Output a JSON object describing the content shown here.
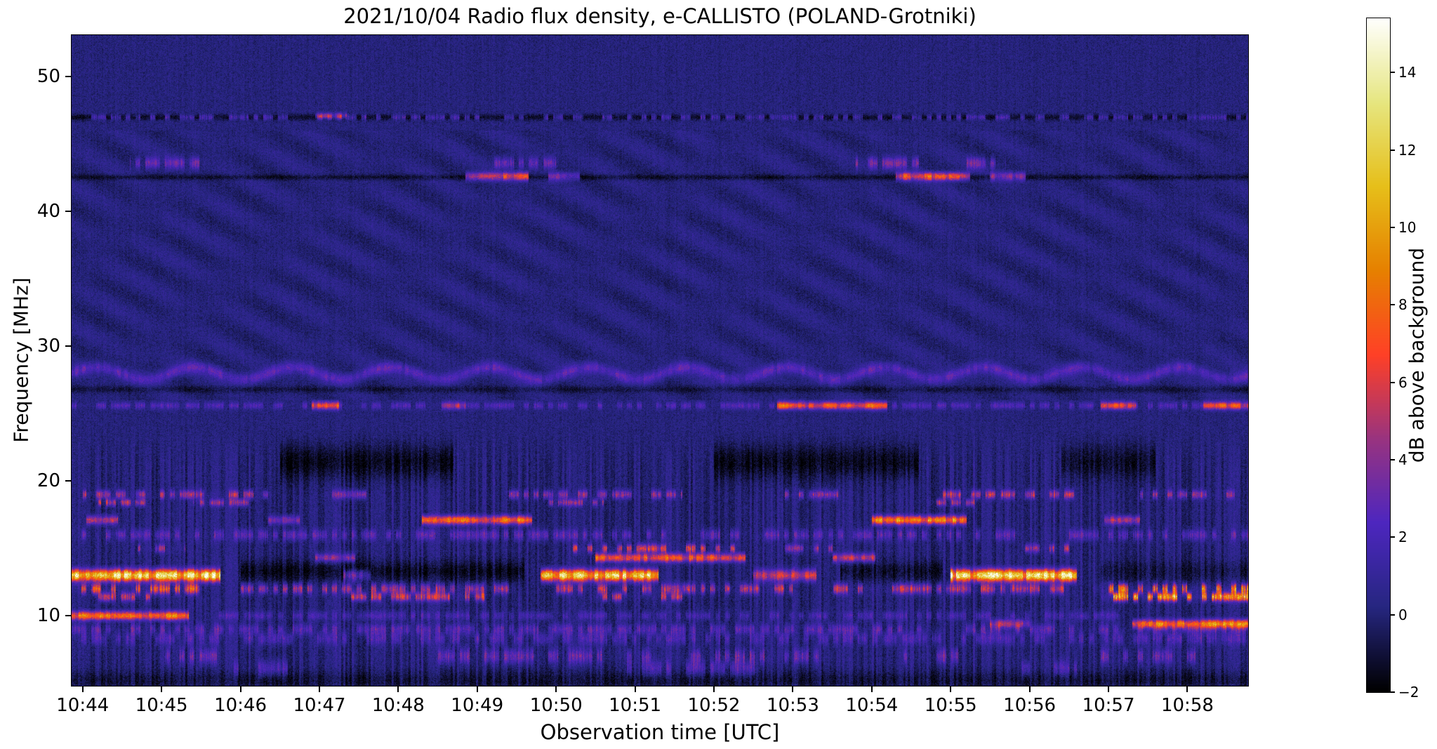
{
  "chart_data": {
    "type": "heatmap",
    "title": "2021/10/04  Radio flux density, e-CALLISTO (POLAND-Grotniki)",
    "xlabel": "Observation time [UTC]",
    "ylabel": "Frequency [MHz]",
    "colorbar_label": "dB above background",
    "x_ticks": [
      "10:44",
      "10:45",
      "10:46",
      "10:47",
      "10:48",
      "10:49",
      "10:50",
      "10:51",
      "10:52",
      "10:53",
      "10:54",
      "10:55",
      "10:56",
      "10:57",
      "10:58"
    ],
    "y_ticks": [
      {
        "v": 10,
        "label": "10"
      },
      {
        "v": 20,
        "label": "20"
      },
      {
        "v": 30,
        "label": "30"
      },
      {
        "v": 40,
        "label": "40"
      },
      {
        "v": 50,
        "label": "50"
      }
    ],
    "colorbar_ticks": [
      {
        "v": -2,
        "label": "−2"
      },
      {
        "v": 0,
        "label": "0"
      },
      {
        "v": 2,
        "label": "2"
      },
      {
        "v": 4,
        "label": "4"
      },
      {
        "v": 6,
        "label": "6"
      },
      {
        "v": 8,
        "label": "8"
      },
      {
        "v": 10,
        "label": "10"
      },
      {
        "v": 12,
        "label": "12"
      },
      {
        "v": 14,
        "label": "14"
      }
    ],
    "time_start_min": -0.14,
    "time_end_min": 14.77,
    "freq_min_mhz": 4.8,
    "freq_max_mhz": 53.1,
    "value_min_db": -2,
    "value_max_db": 15.4,
    "background_db_mean": 0.15,
    "background_db_noise": 1.0,
    "colormap": [
      [
        0.0,
        "#000000"
      ],
      [
        0.125,
        "#262680"
      ],
      [
        0.25,
        "#4d26bf"
      ],
      [
        0.375,
        "#99337f"
      ],
      [
        0.5,
        "#ff4026"
      ],
      [
        0.625,
        "#e68000"
      ],
      [
        0.75,
        "#e6bf1a"
      ],
      [
        0.875,
        "#e6e680"
      ],
      [
        1.0,
        "#ffffff"
      ]
    ],
    "bands": [
      {
        "f": 47.0,
        "w": 0.16,
        "mode": "dark",
        "segs": [
          [
            -0.2,
            14.8,
            -1.6
          ]
        ]
      },
      {
        "f": 47.0,
        "w": 0.14,
        "mode": "dash",
        "segs": [
          [
            0.0,
            14.8,
            3.2
          ]
        ]
      },
      {
        "f": 47.1,
        "w": 0.15,
        "mode": "line",
        "segs": [
          [
            2.95,
            3.35,
            4.5
          ]
        ]
      },
      {
        "f": 43.6,
        "w": 0.3,
        "mode": "dash",
        "segs": [
          [
            0.6,
            1.6,
            3.0
          ],
          [
            5.2,
            6.0,
            3.0
          ],
          [
            9.8,
            10.6,
            3.5
          ],
          [
            11.2,
            11.7,
            3.0
          ]
        ]
      },
      {
        "f": 42.55,
        "w": 0.14,
        "mode": "dark",
        "segs": [
          [
            -0.2,
            14.8,
            -1.3
          ]
        ]
      },
      {
        "f": 42.6,
        "w": 0.2,
        "mode": "line",
        "segs": [
          [
            4.85,
            5.65,
            7.5
          ],
          [
            5.9,
            6.3,
            4.5
          ],
          [
            10.3,
            11.25,
            8.5
          ],
          [
            11.5,
            11.95,
            5.0
          ]
        ]
      },
      {
        "f": 28.0,
        "w": 0.3,
        "mode": "line",
        "wamp": 0.45,
        "wper": 1.25,
        "segs": [
          [
            -0.2,
            14.8,
            2.6
          ]
        ]
      },
      {
        "f": 26.8,
        "w": 0.18,
        "mode": "dark",
        "segs": [
          [
            -0.2,
            14.8,
            -1.0
          ]
        ]
      },
      {
        "f": 25.6,
        "w": 0.18,
        "mode": "dash",
        "segs": [
          [
            -0.2,
            14.8,
            2.2
          ]
        ]
      },
      {
        "f": 25.6,
        "w": 0.2,
        "mode": "line",
        "segs": [
          [
            2.9,
            3.25,
            5.5
          ],
          [
            4.55,
            4.85,
            4.0
          ],
          [
            8.8,
            10.2,
            7.0
          ],
          [
            12.9,
            13.35,
            5.5
          ],
          [
            14.2,
            14.8,
            6.0
          ]
        ]
      },
      {
        "f": 21.4,
        "w": 0.9,
        "mode": "dark",
        "segs": [
          [
            2.5,
            4.7,
            -1.7
          ],
          [
            8.0,
            10.6,
            -1.7
          ],
          [
            12.4,
            13.6,
            -1.4
          ]
        ]
      },
      {
        "f": 19.0,
        "w": 0.22,
        "mode": "dash",
        "segs": [
          [
            0.0,
            2.4,
            4.5
          ],
          [
            3.0,
            3.6,
            3.5
          ],
          [
            5.4,
            7.6,
            4.0
          ],
          [
            8.9,
            9.6,
            4.0
          ],
          [
            10.9,
            12.6,
            5.0
          ],
          [
            13.4,
            14.6,
            4.0
          ]
        ]
      },
      {
        "f": 18.4,
        "w": 0.18,
        "mode": "dash",
        "segs": [
          [
            0.2,
            0.8,
            5.0
          ],
          [
            1.4,
            2.1,
            4.0
          ],
          [
            5.9,
            6.6,
            4.0
          ],
          [
            10.7,
            11.3,
            5.0
          ]
        ]
      },
      {
        "f": 17.1,
        "w": 0.22,
        "mode": "line",
        "segs": [
          [
            0.05,
            0.45,
            5.0
          ],
          [
            2.35,
            2.75,
            4.0
          ],
          [
            4.3,
            5.7,
            8.5
          ],
          [
            10.0,
            11.2,
            9.5
          ],
          [
            12.95,
            13.4,
            5.0
          ]
        ]
      },
      {
        "f": 16.0,
        "w": 0.28,
        "mode": "dash",
        "segs": [
          [
            -0.2,
            14.8,
            2.6
          ]
        ]
      },
      {
        "f": 15.0,
        "w": 0.22,
        "mode": "dash",
        "segs": [
          [
            0.7,
            1.3,
            4.5
          ],
          [
            6.2,
            8.3,
            6.0
          ],
          [
            8.9,
            9.5,
            4.0
          ],
          [
            11.9,
            12.5,
            4.5
          ]
        ]
      },
      {
        "f": 14.3,
        "w": 0.22,
        "mode": "line",
        "segs": [
          [
            2.95,
            3.45,
            4.0
          ],
          [
            6.5,
            8.4,
            7.5
          ],
          [
            9.5,
            10.05,
            5.5
          ]
        ]
      },
      {
        "f": 13.0,
        "w": 0.3,
        "mode": "line",
        "segs": [
          [
            -0.2,
            1.75,
            13.5
          ],
          [
            3.3,
            3.65,
            4.0
          ],
          [
            5.8,
            7.3,
            12.5
          ],
          [
            8.5,
            9.3,
            6.0
          ],
          [
            11.0,
            12.6,
            13.8
          ]
        ]
      },
      {
        "f": 13.3,
        "w": 0.55,
        "mode": "dark",
        "segs": [
          [
            2.0,
            5.6,
            -1.6
          ],
          [
            9.6,
            10.9,
            -1.4
          ],
          [
            12.9,
            14.8,
            -1.0
          ]
        ]
      },
      {
        "f": 12.0,
        "w": 0.26,
        "mode": "dash",
        "segs": [
          [
            -0.2,
            1.5,
            7.0
          ],
          [
            2.0,
            5.5,
            4.5
          ],
          [
            6.0,
            9.0,
            5.0
          ],
          [
            9.5,
            12.5,
            5.0
          ],
          [
            12.8,
            14.8,
            8.5
          ]
        ]
      },
      {
        "f": 11.4,
        "w": 0.22,
        "mode": "dash",
        "segs": [
          [
            0.2,
            1.1,
            5.0
          ],
          [
            3.4,
            5.1,
            5.5
          ],
          [
            6.4,
            7.6,
            5.0
          ],
          [
            12.9,
            14.8,
            9.5
          ]
        ]
      },
      {
        "f": 10.0,
        "w": 0.22,
        "mode": "line",
        "segs": [
          [
            -0.2,
            1.35,
            8.5
          ]
        ]
      },
      {
        "f": 10.0,
        "w": 0.22,
        "mode": "dash",
        "segs": [
          [
            1.6,
            13.2,
            1.8
          ]
        ]
      },
      {
        "f": 9.4,
        "w": 0.22,
        "mode": "line",
        "segs": [
          [
            11.5,
            12.0,
            4.5
          ],
          [
            13.3,
            14.8,
            8.5
          ]
        ]
      },
      {
        "f": 9.0,
        "w": 0.28,
        "mode": "dash",
        "segs": [
          [
            -0.2,
            14.8,
            2.4
          ]
        ]
      },
      {
        "f": 8.3,
        "w": 0.32,
        "mode": "dash",
        "segs": [
          [
            -0.2,
            14.8,
            2.0
          ]
        ]
      },
      {
        "f": 7.0,
        "w": 0.38,
        "mode": "dash",
        "segs": [
          [
            0.9,
            1.7,
            3.0
          ],
          [
            4.5,
            9.5,
            3.0
          ],
          [
            10.4,
            11.1,
            3.0
          ],
          [
            12.9,
            14.1,
            3.0
          ]
        ]
      },
      {
        "f": 6.1,
        "w": 0.4,
        "mode": "dash",
        "segs": [
          [
            1.9,
            2.6,
            2.2
          ],
          [
            6.9,
            8.6,
            2.4
          ],
          [
            11.9,
            12.6,
            2.2
          ]
        ]
      },
      {
        "f": 5.2,
        "w": 0.5,
        "mode": "dark",
        "segs": [
          [
            -0.2,
            14.8,
            -1.1
          ]
        ]
      }
    ]
  }
}
